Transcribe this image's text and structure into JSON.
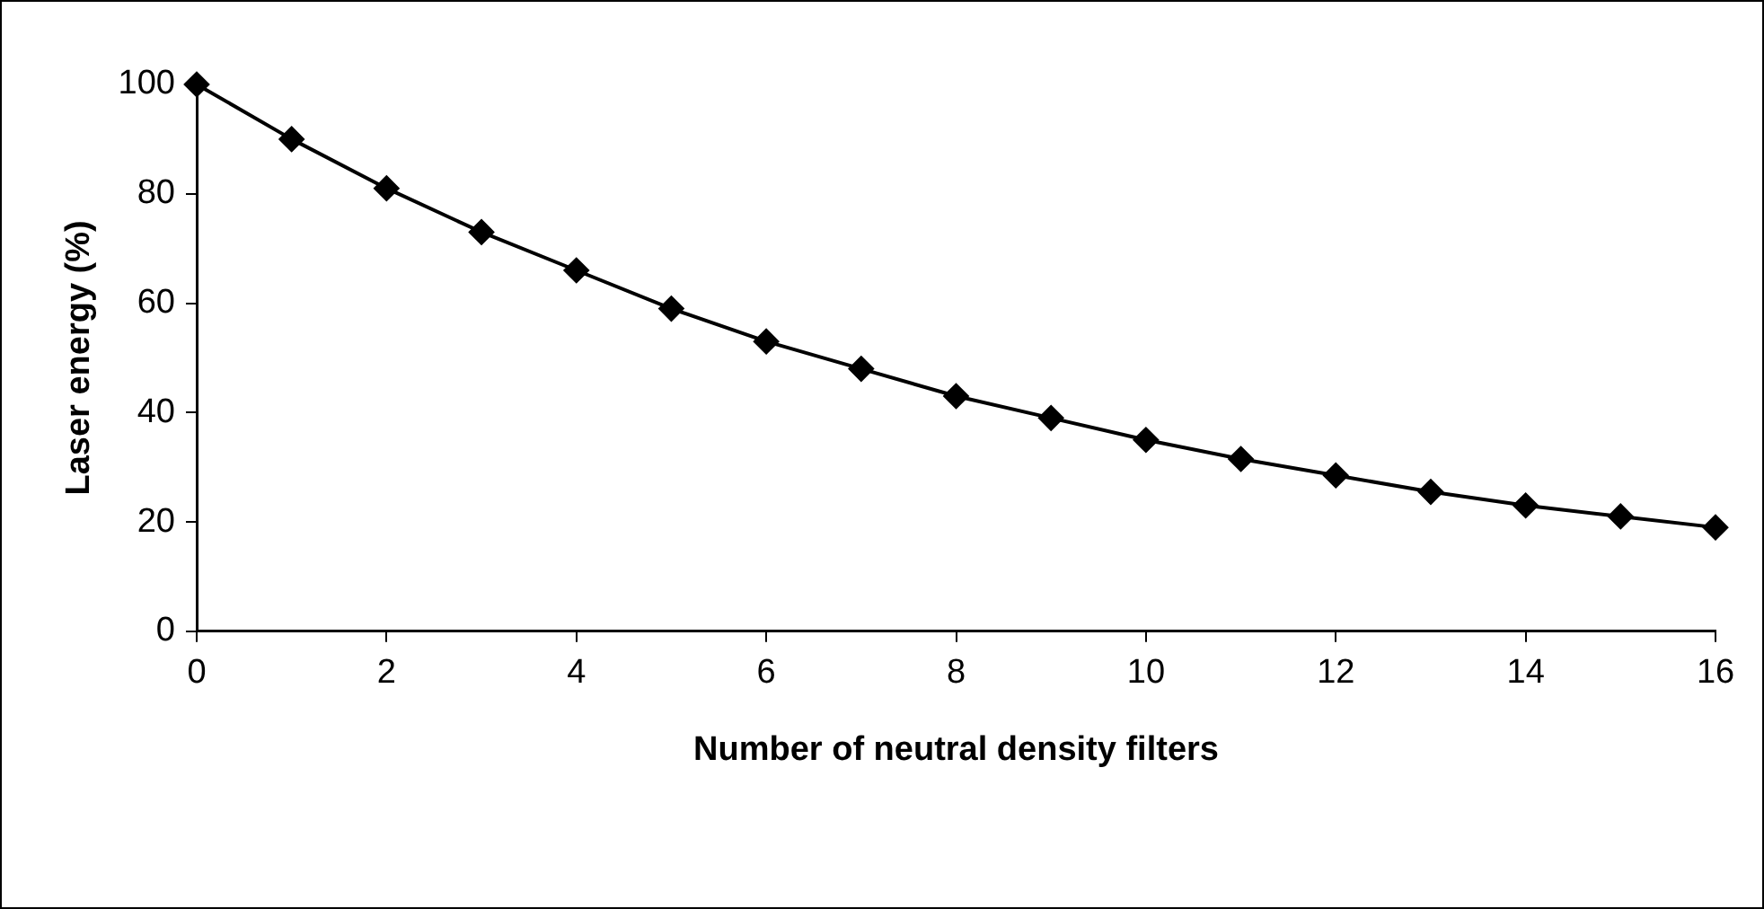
{
  "chart_data": {
    "type": "line",
    "xlabel": "Number of neutral density filters",
    "ylabel": "Laser energy (%)",
    "x": [
      0,
      1,
      2,
      3,
      4,
      5,
      6,
      7,
      8,
      9,
      10,
      11,
      12,
      13,
      14,
      15,
      16
    ],
    "series": [
      {
        "color": "#000000",
        "values": [
          100,
          90,
          81,
          73,
          66,
          59,
          53,
          48,
          43,
          39,
          35,
          31.5,
          28.5,
          25.5,
          23,
          21,
          19
        ]
      }
    ],
    "xlim": [
      0,
      16
    ],
    "xticks": [
      0,
      2,
      4,
      6,
      8,
      10,
      12,
      14,
      16
    ],
    "ylim": [
      0,
      100
    ],
    "yticks": [
      0,
      20,
      40,
      60,
      80,
      100
    ],
    "grid": false,
    "legend": false,
    "marker": "diamond",
    "line_style": "solid"
  }
}
